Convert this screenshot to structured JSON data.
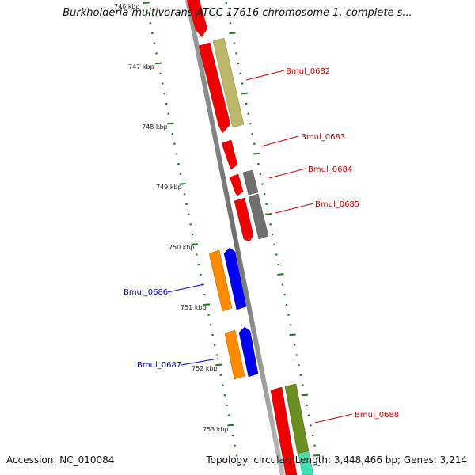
{
  "title": "Burkholderia multivorans ATCC 17616 chromosome 1, complete s...",
  "footer": {
    "accession": "Accession: NC_010084",
    "summary": "Topology: circular; Length: 3,448,466 bp; Genes: 3,214"
  },
  "kbp_labels": [
    "746 kbp",
    "747 kbp",
    "748 kbp",
    "749 kbp",
    "750 kbp",
    "751 kbp",
    "752 kbp",
    "753 kbp"
  ],
  "gene_labels": [
    {
      "text": "Bmul_0682",
      "color": "#cc0000"
    },
    {
      "text": "Bmul_0683",
      "color": "#cc0000"
    },
    {
      "text": "Bmul_0684",
      "color": "#cc0000"
    },
    {
      "text": "Bmul_0685",
      "color": "#cc0000"
    },
    {
      "text": "Bmul_0686",
      "color": "#0000cc"
    },
    {
      "text": "Bmul_0687",
      "color": "#0000cc"
    },
    {
      "text": "Bmul_0688",
      "color": "#cc0000"
    }
  ],
  "colors": {
    "backbone": "#888888",
    "tick": "#1a7a1a",
    "gene_red": "#ee0000",
    "gene_blue": "#0000ee",
    "cds_tan": "#bdb76b",
    "cds_gray": "#707070",
    "cds_orange": "#ff8c00",
    "cds_olive": "#6b8e23",
    "cds_aqua": "#40e0b0"
  }
}
